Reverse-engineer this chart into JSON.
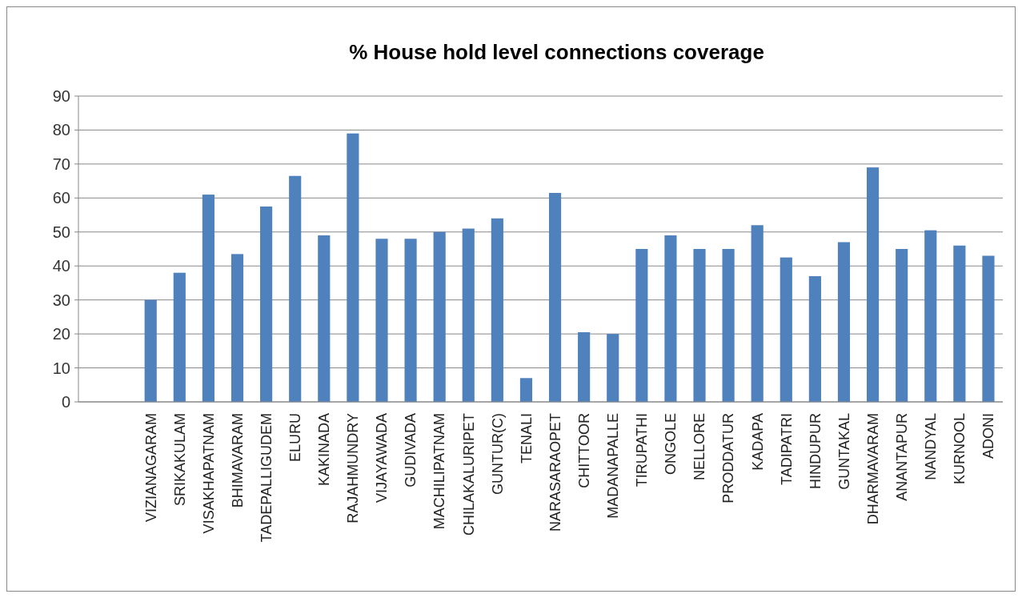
{
  "chart_data": {
    "type": "bar",
    "title": "% House hold level connections coverage",
    "categories": [
      null,
      null,
      "VIZIANAGARAM",
      "SRIKAKULAM",
      "VISAKHAPATNAM",
      "BHIMAVARAM",
      "TADEPALLIGUDEM",
      "ELURU",
      "KAKINADA",
      "RAJAHMUNDRY",
      "VIJAYAWADA",
      "GUDIVADA",
      "MACHILIPATNAM",
      "CHILAKALURIPET",
      "GUNTUR(C)",
      "TENALI",
      "NARASARAOPET",
      "CHITTOOR",
      "MADANAPALLE",
      "TIRUPATHI",
      "ONGOLE",
      "NELLORE",
      "PRODDATUR",
      "KADAPA",
      "TADIPATRI",
      "HINDUPUR",
      "GUNTAKAL",
      "DHARMAVARAM",
      "ANANTAPUR",
      "NANDYAL",
      "KURNOOL",
      "ADONI"
    ],
    "values": [
      null,
      null,
      30,
      38,
      61,
      43.5,
      57.5,
      66.5,
      49,
      79,
      48,
      48,
      50,
      51,
      54,
      7,
      61.5,
      20.5,
      20,
      45,
      49,
      45,
      45,
      52,
      42.5,
      37,
      47,
      69,
      45,
      50.5,
      46,
      43
    ],
    "color": "#4f81bd",
    "ylim": [
      0,
      90
    ],
    "yticks": [
      0,
      10,
      20,
      30,
      40,
      50,
      60,
      70,
      80,
      90
    ],
    "grid": "y"
  }
}
